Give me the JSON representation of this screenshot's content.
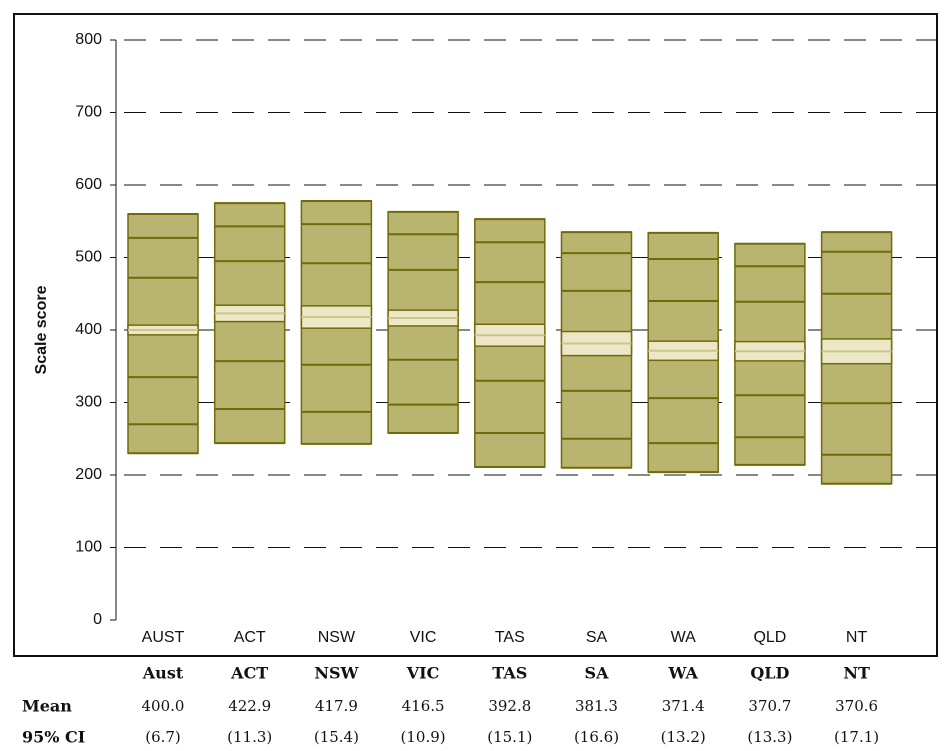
{
  "chart_data": {
    "type": "percentile",
    "y_label": "Scale score",
    "categories": [
      "AUST",
      "ACT",
      "NSW",
      "VIC",
      "TAS",
      "SA",
      "WA",
      "QLD",
      "NT"
    ],
    "series": [
      {
        "values": [
          230,
          244,
          243,
          258,
          211,
          210,
          204,
          214,
          188
        ]
      },
      {
        "values": [
          270,
          291,
          287,
          297,
          258,
          250,
          244,
          252,
          228
        ]
      },
      {
        "values": [
          335,
          357,
          352,
          359,
          330,
          316,
          306,
          310,
          299
        ]
      },
      {
        "values": [
          472,
          495,
          492,
          483,
          466,
          454,
          440,
          439,
          450
        ]
      },
      {
        "values": [
          527,
          543,
          546,
          532,
          521,
          506,
          498,
          488,
          508
        ]
      },
      {
        "values": [
          560,
          575,
          578,
          563,
          553,
          535,
          534,
          519,
          535
        ]
      }
    ],
    "mean": [
      400,
      422.9,
      417.9,
      416.5,
      392.8,
      381.3,
      371.4,
      370.7,
      370.6
    ],
    "mean_labels": [
      "400.0",
      "422.9",
      "417.9",
      "416.5",
      "392.8",
      "381.3",
      "371.4",
      "370.7",
      "370.6"
    ],
    "ci": [
      6.7,
      11.3,
      15.4,
      10.9,
      15.1,
      16.6,
      13.2,
      13.3,
      17.1
    ],
    "ci_labels": [
      "(6.7)",
      "(11.3)",
      "(15.4)",
      "(10.9)",
      "(15.1)",
      "(16.6)",
      "(13.2)",
      "(13.3)",
      "(17.1)"
    ],
    "ylim": [
      0,
      800
    ],
    "yticks": [
      0,
      100,
      200,
      300,
      400,
      500,
      600,
      700,
      800
    ],
    "grid": true,
    "box_color": "#b9b46f",
    "line_color": "#6e6c0a",
    "ci_color": "#ece7c6",
    "mean_color": "#cbc68c"
  },
  "table": {
    "header": [
      "Aust",
      "ACT",
      "NSW",
      "VIC",
      "TAS",
      "SA",
      "WA",
      "QLD",
      "NT"
    ],
    "rows": [
      {
        "label": "Mean"
      },
      {
        "label": "95% CI"
      }
    ]
  }
}
